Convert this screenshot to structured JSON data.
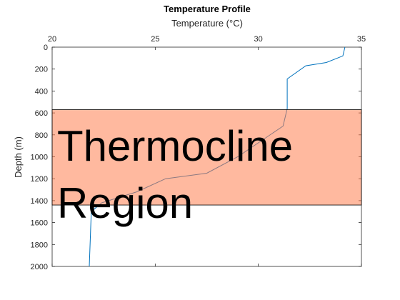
{
  "chart_data": {
    "type": "line",
    "title": "Temperature Profile",
    "xlabel": "Temperature (°C)",
    "ylabel": "Depth (m)",
    "x_axis_location": "top",
    "y_axis_reversed": true,
    "xlim": [
      20,
      35
    ],
    "ylim": [
      0,
      2000
    ],
    "xticks": [
      "20",
      "25",
      "30",
      "35"
    ],
    "yticks": [
      "0",
      "200",
      "400",
      "600",
      "800",
      "1000",
      "1200",
      "1400",
      "1600",
      "1800",
      "2000"
    ],
    "series": [
      {
        "color": "#0072BD",
        "points": [
          [
            34.2,
            0
          ],
          [
            34.1,
            80
          ],
          [
            33.3,
            140
          ],
          [
            32.3,
            170
          ],
          [
            31.4,
            290
          ],
          [
            31.4,
            560
          ],
          [
            31.2,
            720
          ],
          [
            29.0,
            1000
          ],
          [
            27.5,
            1150
          ],
          [
            25.5,
            1200
          ],
          [
            24.1,
            1320
          ],
          [
            22.4,
            1420
          ],
          [
            21.9,
            1500
          ],
          [
            21.8,
            2000
          ]
        ]
      }
    ],
    "highlight": {
      "label_lines": [
        "Thermocline",
        "Region"
      ],
      "y_range": [
        570,
        1440
      ],
      "color": "#ff7f50",
      "opacity": 0.55
    }
  }
}
